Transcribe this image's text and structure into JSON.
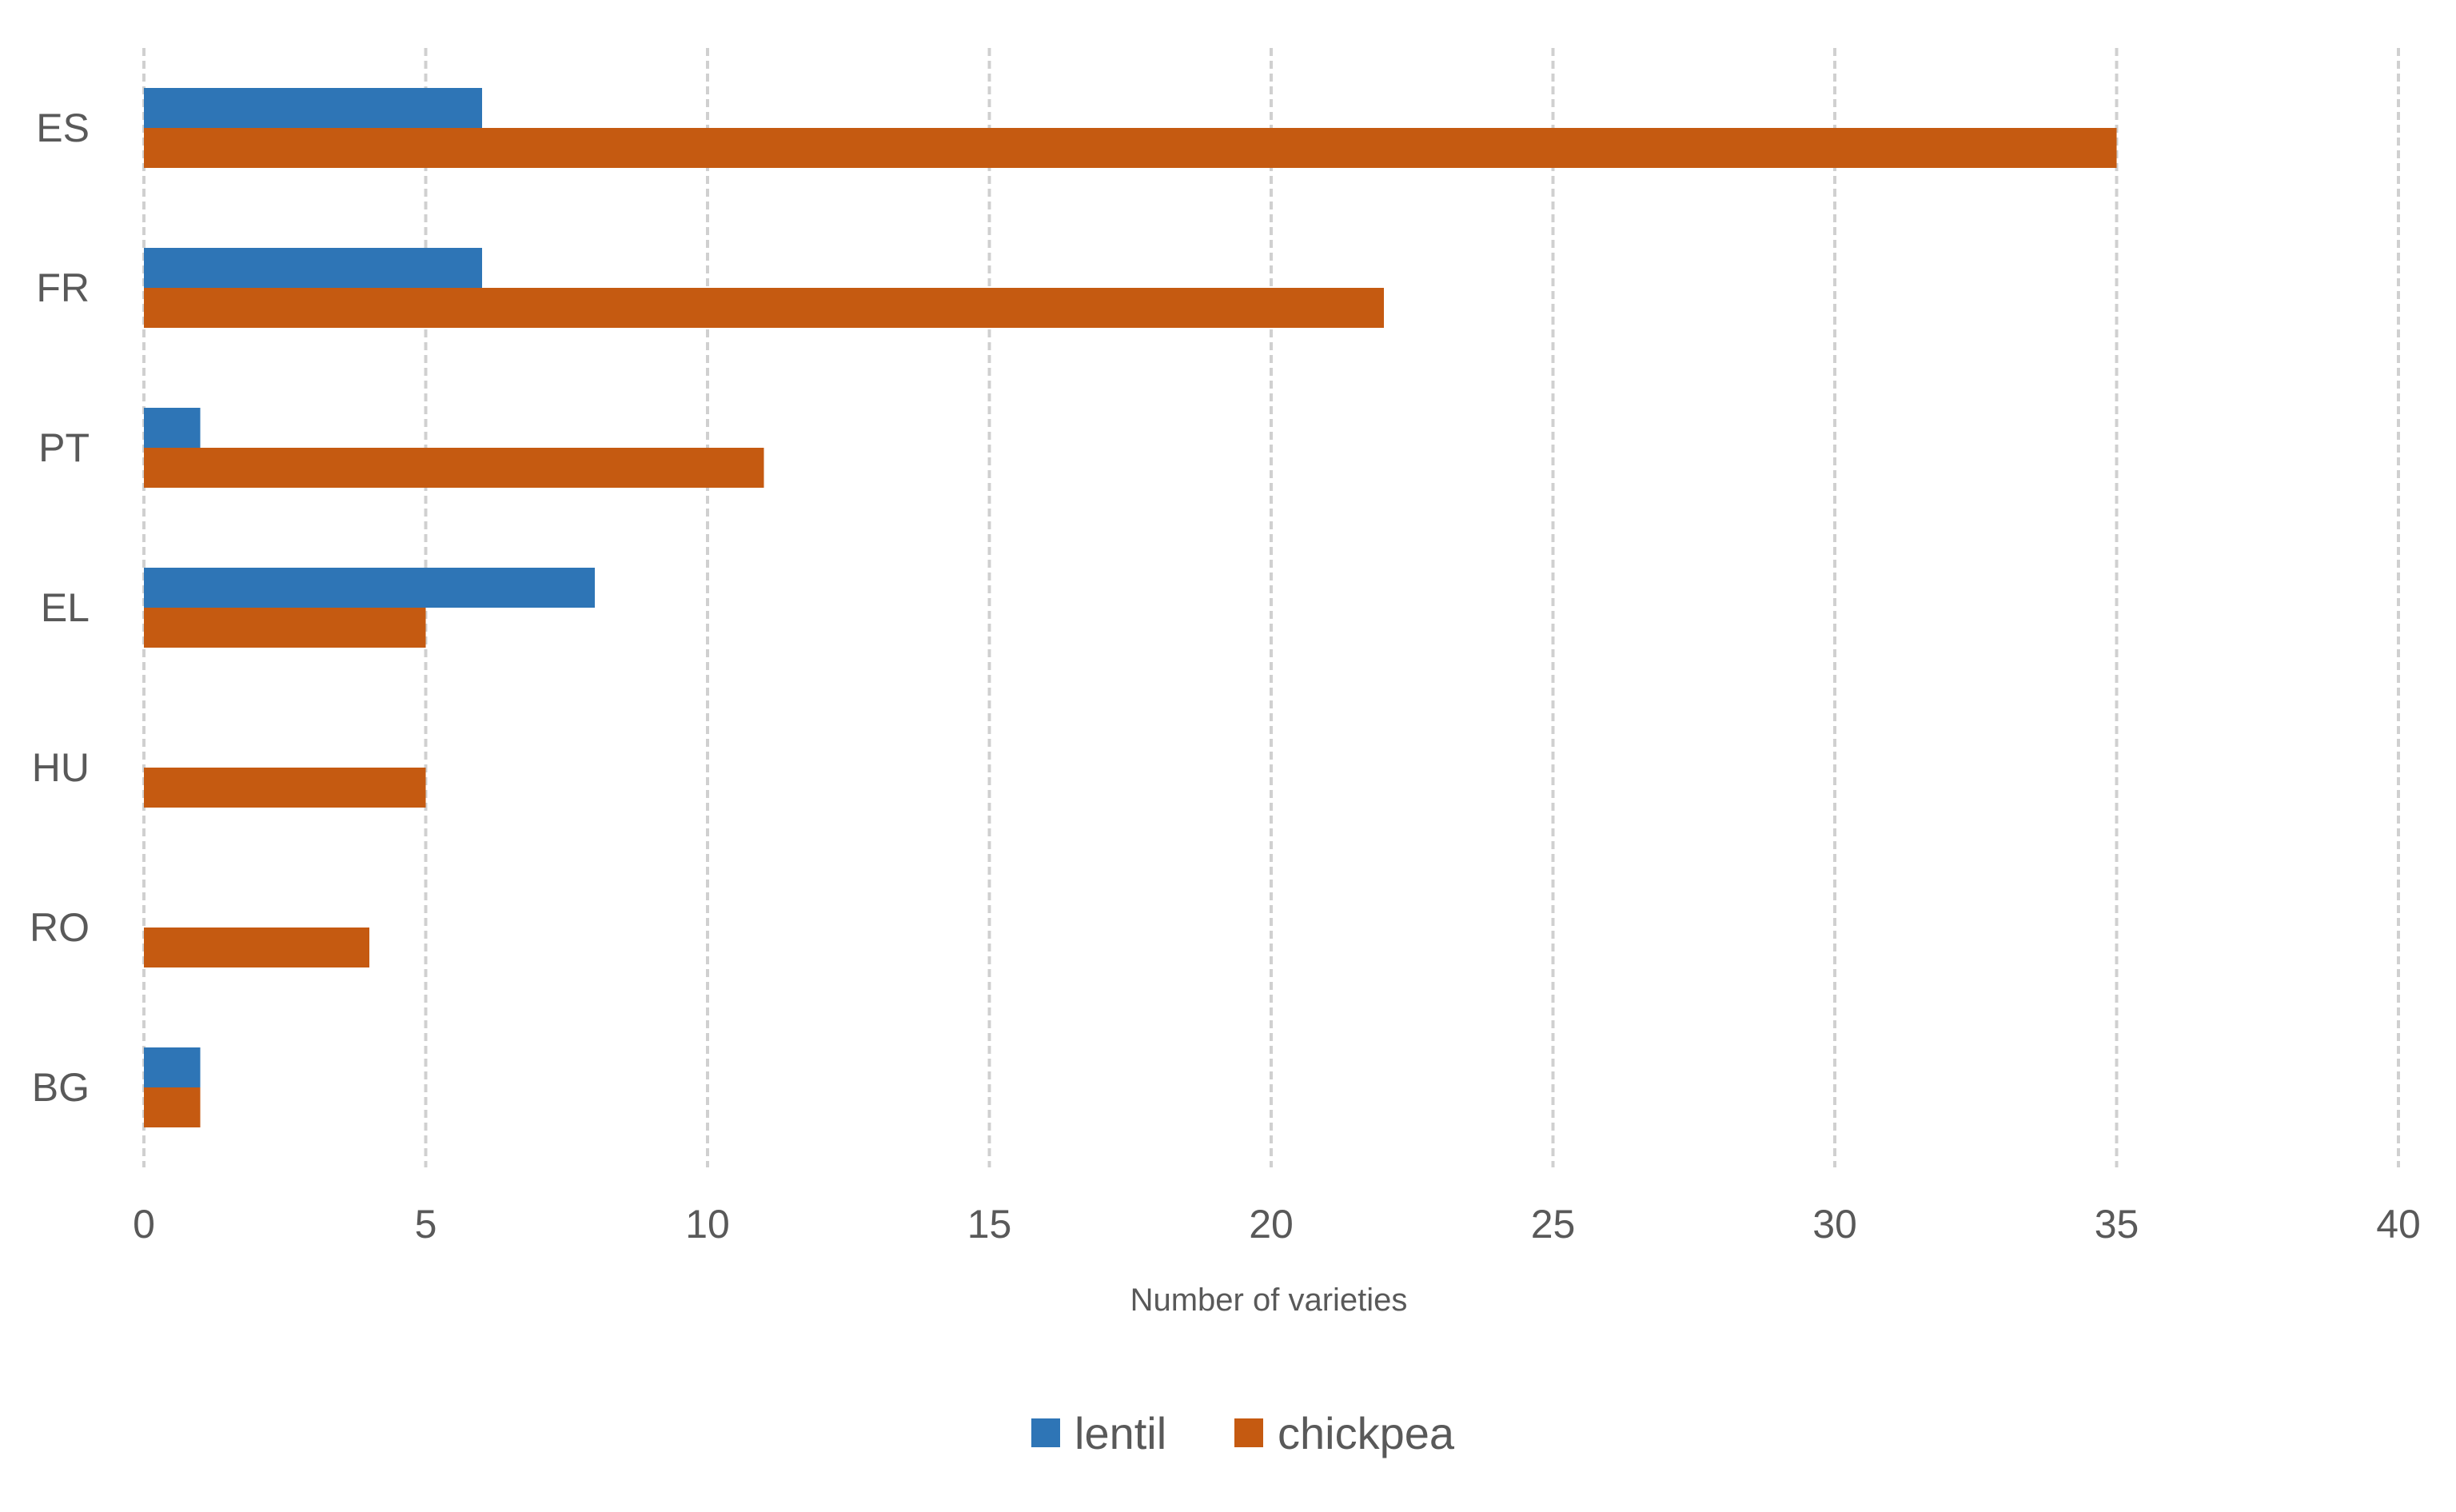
{
  "chart_data": {
    "type": "bar",
    "orientation": "horizontal",
    "categories": [
      "ES",
      "FR",
      "PT",
      "EL",
      "HU",
      "RO",
      "BG"
    ],
    "series": [
      {
        "name": "lentil",
        "color": "#2E75B6",
        "values": [
          6,
          6,
          1,
          8,
          0,
          0,
          1
        ]
      },
      {
        "name": "chickpea",
        "color": "#C55A11",
        "values": [
          35,
          22,
          11,
          5,
          5,
          4,
          1
        ]
      }
    ],
    "title": "",
    "xlabel": "Number of varieties",
    "ylabel": "",
    "xlim": [
      0,
      40
    ],
    "xticks": [
      "0",
      "5",
      "10",
      "15",
      "20",
      "25",
      "30",
      "35",
      "40"
    ],
    "grid": "vertical dashed",
    "legend_position": "bottom"
  }
}
